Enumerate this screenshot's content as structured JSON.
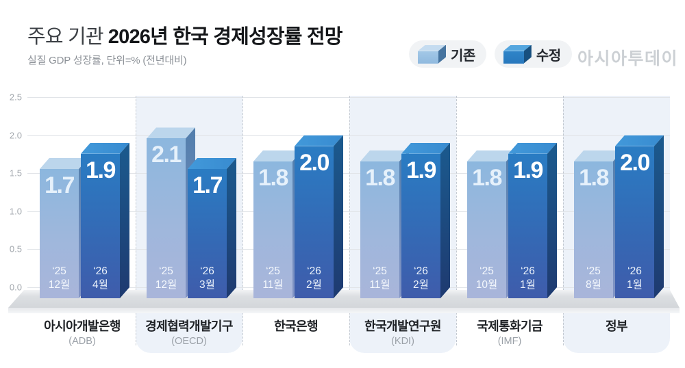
{
  "header": {
    "title_light": "주요 기관",
    "title_bold": "2026년 한국 경제성장률 전망",
    "subtitle": "실질 GDP 성장률, 단위=% (전년대비)",
    "logo": "아시아투데이"
  },
  "legend": {
    "items": [
      {
        "label": "기존",
        "color": "#8fb9de"
      },
      {
        "label": "수정",
        "color": "#2a7cc3"
      }
    ]
  },
  "colors": {
    "existing_bar": "#8fb9de",
    "revised_bar": "#2a7cc3",
    "shaded_band": "#edf2f9",
    "platform": "#d7dade",
    "logo_gray": "#ccd0d4"
  },
  "chart_data": {
    "type": "bar",
    "title": "주요 기관 2026년 한국 경제성장률 전망",
    "subtitle": "실질 GDP 성장률, 단위=% (전년대비)",
    "unit": "%",
    "ylim": [
      0.0,
      2.5
    ],
    "yticks": [
      "0.0",
      "0.5",
      "1.0",
      "1.5",
      "2.0",
      "2.5"
    ],
    "grid": true,
    "legend_entries": [
      "기존",
      "수정"
    ],
    "legend_position": "top-right",
    "categories": [
      "아시아개발은행 (ADB)",
      "경제협력개발기구 (OECD)",
      "한국은행",
      "한국개발연구원 (KDI)",
      "국제통화기금 (IMF)",
      "정부"
    ],
    "series": [
      {
        "name": "기존",
        "values": [
          1.7,
          2.1,
          1.8,
          1.8,
          1.8,
          1.8
        ]
      },
      {
        "name": "수정",
        "values": [
          1.9,
          1.7,
          2.0,
          1.9,
          1.9,
          2.0
        ]
      }
    ],
    "groups": [
      {
        "institution": "아시아개발은행",
        "institution_sub": "(ADB)",
        "shaded": false,
        "bars": [
          {
            "series": "기존",
            "year": "‘25",
            "month": "12월",
            "value": 1.7,
            "value_label": "1.7"
          },
          {
            "series": "수정",
            "year": "‘26",
            "month": "4월",
            "value": 1.9,
            "value_label": "1.9"
          }
        ]
      },
      {
        "institution": "경제협력개발기구",
        "institution_sub": "(OECD)",
        "shaded": true,
        "bars": [
          {
            "series": "기존",
            "year": "‘25",
            "month": "12월",
            "value": 2.1,
            "value_label": "2.1"
          },
          {
            "series": "수정",
            "year": "‘26",
            "month": "3월",
            "value": 1.7,
            "value_label": "1.7"
          }
        ]
      },
      {
        "institution": "한국은행",
        "institution_sub": "",
        "shaded": false,
        "bars": [
          {
            "series": "기존",
            "year": "‘25",
            "month": "11월",
            "value": 1.8,
            "value_label": "1.8"
          },
          {
            "series": "수정",
            "year": "‘26",
            "month": "2월",
            "value": 2.0,
            "value_label": "2.0"
          }
        ]
      },
      {
        "institution": "한국개발연구원",
        "institution_sub": "(KDI)",
        "shaded": true,
        "bars": [
          {
            "series": "기존",
            "year": "‘25",
            "month": "11월",
            "value": 1.8,
            "value_label": "1.8"
          },
          {
            "series": "수정",
            "year": "‘26",
            "month": "2월",
            "value": 1.9,
            "value_label": "1.9"
          }
        ]
      },
      {
        "institution": "국제통화기금",
        "institution_sub": "(IMF)",
        "shaded": false,
        "bars": [
          {
            "series": "기존",
            "year": "‘25",
            "month": "10월",
            "value": 1.8,
            "value_label": "1.8"
          },
          {
            "series": "수정",
            "year": "‘26",
            "month": "1월",
            "value": 1.9,
            "value_label": "1.9"
          }
        ]
      },
      {
        "institution": "정부",
        "institution_sub": "",
        "shaded": true,
        "bars": [
          {
            "series": "기존",
            "year": "‘25",
            "month": "8월",
            "value": 1.8,
            "value_label": "1.8"
          },
          {
            "series": "수정",
            "year": "‘26",
            "month": "1월",
            "value": 2.0,
            "value_label": "2.0"
          }
        ]
      }
    ]
  }
}
